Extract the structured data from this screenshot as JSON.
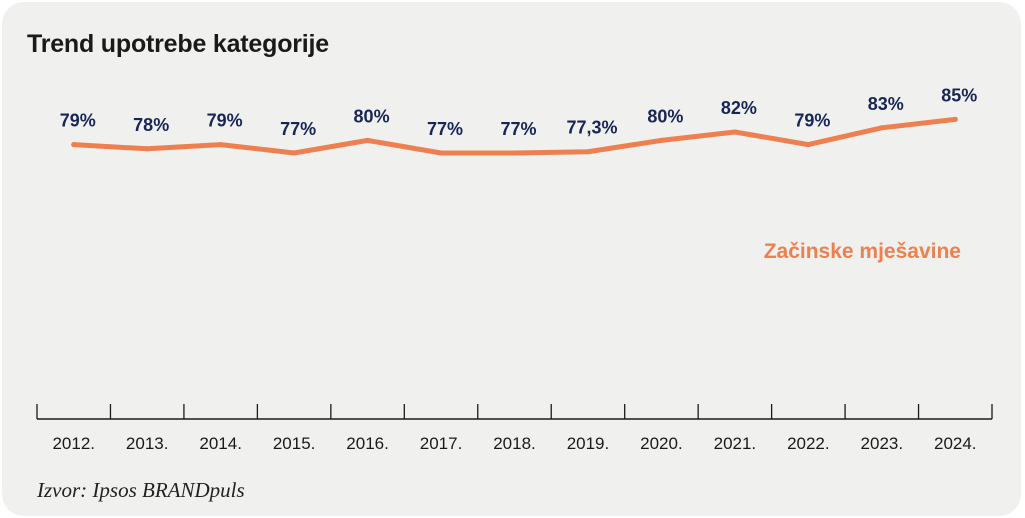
{
  "colors": {
    "background": "#f0f0ef",
    "series": "#ee8050",
    "labels": "#172654",
    "axis": "#1a1a1a"
  },
  "chart_data": {
    "type": "line",
    "title": "Trend upotrebe kategorije",
    "source": "Izvor: Ipsos BRANDpuls",
    "categories": [
      "2012.",
      "2013.",
      "2014.",
      "2015.",
      "2016.",
      "2017.",
      "2018.",
      "2019.",
      "2020.",
      "2021.",
      "2022.",
      "2023.",
      "2024."
    ],
    "series": [
      {
        "name": "Začinske mješavine",
        "values": [
          79,
          78,
          79,
          77,
          80,
          77,
          77,
          77.3,
          80,
          82,
          79,
          83,
          85
        ],
        "value_labels": [
          "79%",
          "78%",
          "79%",
          "77%",
          "80%",
          "77%",
          "77%",
          "77,3%",
          "80%",
          "82%",
          "79%",
          "83%",
          "85%"
        ]
      }
    ],
    "y_axis_visible": false,
    "grid": false,
    "legend": "inline-right"
  }
}
